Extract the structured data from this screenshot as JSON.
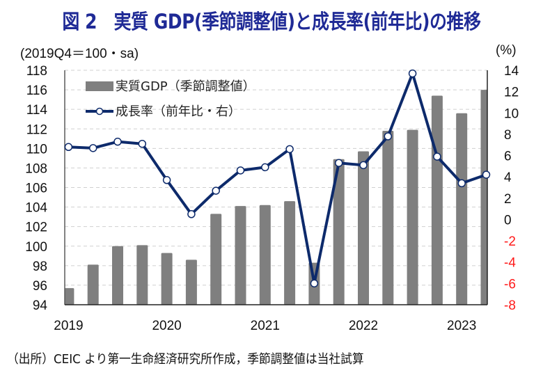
{
  "title": "図 2　実質 GDP(季節調整値)と成長率(前年比)の推移",
  "source_note": "（出所）CEIC より第一生命経済研究所作成，季節調整値は当社試算",
  "colors": {
    "title": "#1f2a96",
    "bar": "#7f7f7f",
    "line": "#0d2a6b",
    "negative_tick": "#ff1a1a",
    "grid": "#d0d0d0"
  },
  "chart_data": {
    "type": "bar+line",
    "title": "図 2　実質 GDP(季節調整値)と成長率(前年比)の推移",
    "ylabel_left": "(2019Q4＝100・sa)",
    "ylabel_right": "(%)",
    "ylim_left": [
      94,
      118
    ],
    "ylim_right": [
      -8,
      14
    ],
    "yticks_left": [
      "118",
      "116",
      "114",
      "112",
      "110",
      "108",
      "106",
      "104",
      "102",
      "100",
      "98",
      "96",
      "94"
    ],
    "yticks_right": [
      "14",
      "12",
      "10",
      "8",
      "6",
      "4",
      "2",
      "0",
      "-2",
      "-4",
      "-6",
      "-8"
    ],
    "grid": true,
    "legend_position": "top-left",
    "categories": [
      "2019Q1",
      "2019Q2",
      "2019Q3",
      "2019Q4",
      "2020Q1",
      "2020Q2",
      "2020Q3",
      "2020Q4",
      "2021Q1",
      "2021Q2",
      "2021Q3",
      "2021Q4",
      "2022Q1",
      "2022Q2",
      "2022Q3",
      "2022Q4",
      "2023Q1",
      "2023Q2"
    ],
    "x_tick_labels": [
      {
        "index": 0,
        "label": "2019"
      },
      {
        "index": 4,
        "label": "2020"
      },
      {
        "index": 8,
        "label": "2021"
      },
      {
        "index": 12,
        "label": "2022"
      },
      {
        "index": 16,
        "label": "2023"
      }
    ],
    "series": [
      {
        "name": "実質GDP（季節調整値）",
        "type": "bar",
        "axis": "left",
        "values": [
          95.7,
          98.1,
          100.0,
          100.1,
          99.3,
          98.6,
          103.3,
          104.1,
          104.2,
          104.6,
          98.3,
          108.9,
          109.7,
          111.8,
          111.9,
          115.4,
          113.6,
          116.0
        ]
      },
      {
        "name": "成長率（前年比・右）",
        "type": "line",
        "axis": "right",
        "values": [
          6.8,
          6.7,
          7.3,
          7.1,
          3.7,
          0.5,
          2.7,
          4.6,
          4.9,
          6.6,
          -6.0,
          5.3,
          5.1,
          7.8,
          13.7,
          5.9,
          3.4,
          4.2
        ]
      }
    ]
  }
}
